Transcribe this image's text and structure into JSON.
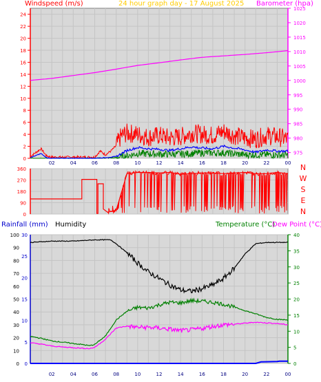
{
  "header": {
    "windspeed_label": "Windspeed (m/s)",
    "title": "24 hour graph day - 17 August 2025",
    "barometer_label": "Barometer (hpa)"
  },
  "bottom_header": {
    "rainfall_label": "Rainfall (mm)",
    "humidity_label": "Humidity",
    "temperature_label": "Temperature (°C)",
    "dewpoint_label": "Dew Point (°C)"
  },
  "colors": {
    "wind": "#ff0000",
    "gust": "#ff0000",
    "wind_blue": "#0000ff",
    "wind_green": "#008000",
    "barometer": "#ff00ff",
    "direction": "#ff0000",
    "humidity": "#000000",
    "temperature": "#008000",
    "dewpoint": "#ff00ff",
    "rain": "#0000ff",
    "title": "#ffcc00",
    "plot_bg": "#d8d8d8"
  },
  "chart_data": [
    {
      "type": "line",
      "name": "wind-barometer",
      "x_ticks": [
        "02",
        "04",
        "06",
        "08",
        "10",
        "12",
        "14",
        "16",
        "18",
        "20",
        "22",
        "00"
      ],
      "xlim": [
        0,
        24
      ],
      "y_left": {
        "label": "Windspeed (m/s)",
        "ylim": [
          0,
          25
        ],
        "ticks": [
          0,
          2,
          4,
          6,
          8,
          10,
          12,
          14,
          16,
          18,
          20,
          22,
          24
        ]
      },
      "y_right": {
        "label": "Barometer (hpa)",
        "ylim": [
          973,
          1025
        ],
        "ticks": [
          975,
          980,
          985,
          990,
          995,
          1000,
          1005,
          1010,
          1015,
          1020,
          1025
        ]
      },
      "series": [
        {
          "key": "barometer",
          "axis": "right",
          "x": [
            0,
            2,
            4,
            6,
            8,
            10,
            12,
            14,
            16,
            18,
            20,
            22,
            24
          ],
          "y": [
            1000,
            1000.7,
            1001.7,
            1002.7,
            1003.9,
            1005.2,
            1006.1,
            1007.1,
            1008.0,
            1008.5,
            1009.0,
            1009.6,
            1010.3
          ]
        },
        {
          "key": "gust",
          "axis": "left",
          "x": [
            0,
            1,
            1.5,
            2,
            4,
            6,
            6.5,
            7,
            7.5,
            8,
            8.5,
            9,
            10,
            11,
            12,
            13,
            14,
            15,
            16,
            17,
            18,
            19,
            20,
            21,
            22,
            23,
            24
          ],
          "y": [
            0.3,
            1.6,
            0.4,
            0.2,
            0.2,
            0.2,
            1.2,
            0.6,
            1.2,
            2.1,
            3.8,
            4.2,
            4.0,
            3.5,
            3.8,
            3.4,
            3.6,
            4.2,
            4.0,
            3.8,
            4.5,
            3.8,
            3.4,
            3.2,
            3.8,
            3.6,
            3.2
          ]
        },
        {
          "key": "wind_avg",
          "axis": "left",
          "x": [
            0,
            1,
            1.5,
            2,
            4,
            6,
            7,
            8,
            8.5,
            9,
            10,
            11,
            12,
            13,
            14,
            15,
            16,
            17,
            18,
            19,
            20,
            21,
            22,
            23,
            24
          ],
          "y": [
            0.1,
            0.8,
            0.1,
            0,
            0,
            0,
            0.1,
            0.3,
            0.8,
            1.3,
            1.8,
            1.6,
            1.5,
            1.3,
            1.6,
            1.9,
            1.7,
            1.6,
            2.0,
            1.7,
            1.4,
            1.0,
            1.4,
            1.2,
            1.2
          ]
        },
        {
          "key": "wind_min",
          "axis": "left",
          "x": [
            0,
            2,
            4,
            6,
            8,
            9,
            10,
            12,
            14,
            16,
            18,
            20,
            22,
            24
          ],
          "y": [
            0,
            0,
            0,
            0,
            0.1,
            0.4,
            0.8,
            0.7,
            0.7,
            0.9,
            0.9,
            0.6,
            0.6,
            0.5
          ]
        }
      ]
    },
    {
      "type": "line",
      "name": "wind-direction",
      "xlim": [
        0,
        24
      ],
      "ylim": [
        0,
        360
      ],
      "y_ticks": [
        0,
        90,
        180,
        270,
        360
      ],
      "compass": [
        "N",
        "W",
        "S",
        "E",
        "N"
      ],
      "series": [
        {
          "key": "direction",
          "x": [
            0,
            4.8,
            4.8,
            6.2,
            6.2,
            6.3,
            6.3,
            6.8,
            6.8,
            7.2,
            8,
            9,
            10,
            11,
            12,
            13,
            14,
            15,
            16,
            17,
            18,
            19,
            20,
            21,
            22,
            23,
            24
          ],
          "y": [
            120,
            120,
            275,
            275,
            5,
            5,
            240,
            240,
            40,
            15,
            30,
            320,
            330,
            330,
            325,
            330,
            315,
            320,
            325,
            325,
            320,
            325,
            330,
            320,
            320,
            330,
            320
          ]
        }
      ]
    },
    {
      "type": "line",
      "name": "humidity-temperature",
      "x_ticks": [
        "02",
        "04",
        "06",
        "08",
        "10",
        "12",
        "14",
        "16",
        "18",
        "20",
        "22",
        "00"
      ],
      "xlim": [
        0,
        24
      ],
      "y_left": {
        "labels": [
          "Rainfall (mm)",
          "Humidity"
        ],
        "ylim": [
          0,
          100
        ],
        "ticks": [
          0,
          10,
          20,
          30,
          40,
          50,
          60,
          70,
          80,
          90,
          100
        ],
        "rain_ticks": [
          0,
          5,
          10,
          15,
          20,
          25,
          30
        ]
      },
      "y_right": {
        "labels": [
          "Temperature (°C)",
          "Dew Point (°C)"
        ],
        "ylim": [
          0,
          40
        ],
        "ticks": [
          0,
          5,
          10,
          15,
          20,
          25,
          30,
          35,
          40
        ]
      },
      "series": [
        {
          "key": "humidity",
          "axis": "left",
          "x": [
            0,
            2,
            4,
            6,
            7.5,
            8,
            9,
            10,
            11,
            12,
            13,
            14,
            15,
            16,
            17,
            18,
            19,
            20,
            21,
            22,
            23,
            24
          ],
          "y": [
            94,
            95,
            95,
            96,
            96,
            93,
            86,
            78,
            71,
            66,
            61,
            57,
            56,
            58,
            61,
            66,
            74,
            85,
            93,
            94,
            94,
            94
          ]
        },
        {
          "key": "temperature",
          "axis": "right",
          "x": [
            0,
            1,
            2,
            3,
            4,
            5,
            5.5,
            6,
            7,
            8,
            9,
            10,
            11,
            12,
            13,
            14,
            15,
            16,
            17,
            18,
            19,
            20,
            21,
            22,
            23,
            24
          ],
          "y": [
            8.4,
            7.8,
            7.0,
            6.6,
            6.2,
            5.8,
            5.5,
            5.9,
            8.5,
            13.5,
            16.2,
            17.4,
            17.2,
            18.2,
            19.0,
            18.8,
            19.5,
            19.3,
            19.0,
            18.4,
            17.5,
            16.4,
            15.4,
            14.3,
            13.7,
            13.5
          ]
        },
        {
          "key": "dewpoint",
          "axis": "right",
          "x": [
            0,
            1,
            2,
            3,
            4,
            5,
            5.5,
            6,
            7,
            8,
            9,
            10,
            11,
            12,
            13,
            14,
            15,
            16,
            17,
            18,
            19,
            20,
            21,
            22,
            23,
            24
          ],
          "y": [
            6.4,
            6.0,
            5.4,
            5.1,
            4.9,
            4.7,
            4.6,
            5.0,
            7.5,
            11.0,
            11.6,
            11.2,
            11.2,
            11.0,
            10.6,
            10.2,
            10.4,
            10.9,
            11.5,
            12.0,
            12.2,
            12.5,
            12.8,
            12.6,
            12.4,
            12.0
          ]
        },
        {
          "key": "rain",
          "axis": "left",
          "x": [
            0,
            21,
            21.5,
            22,
            23,
            23.2,
            24
          ],
          "y": [
            0,
            0,
            1.2,
            1.3,
            1.5,
            1.7,
            1.7
          ]
        }
      ]
    }
  ]
}
